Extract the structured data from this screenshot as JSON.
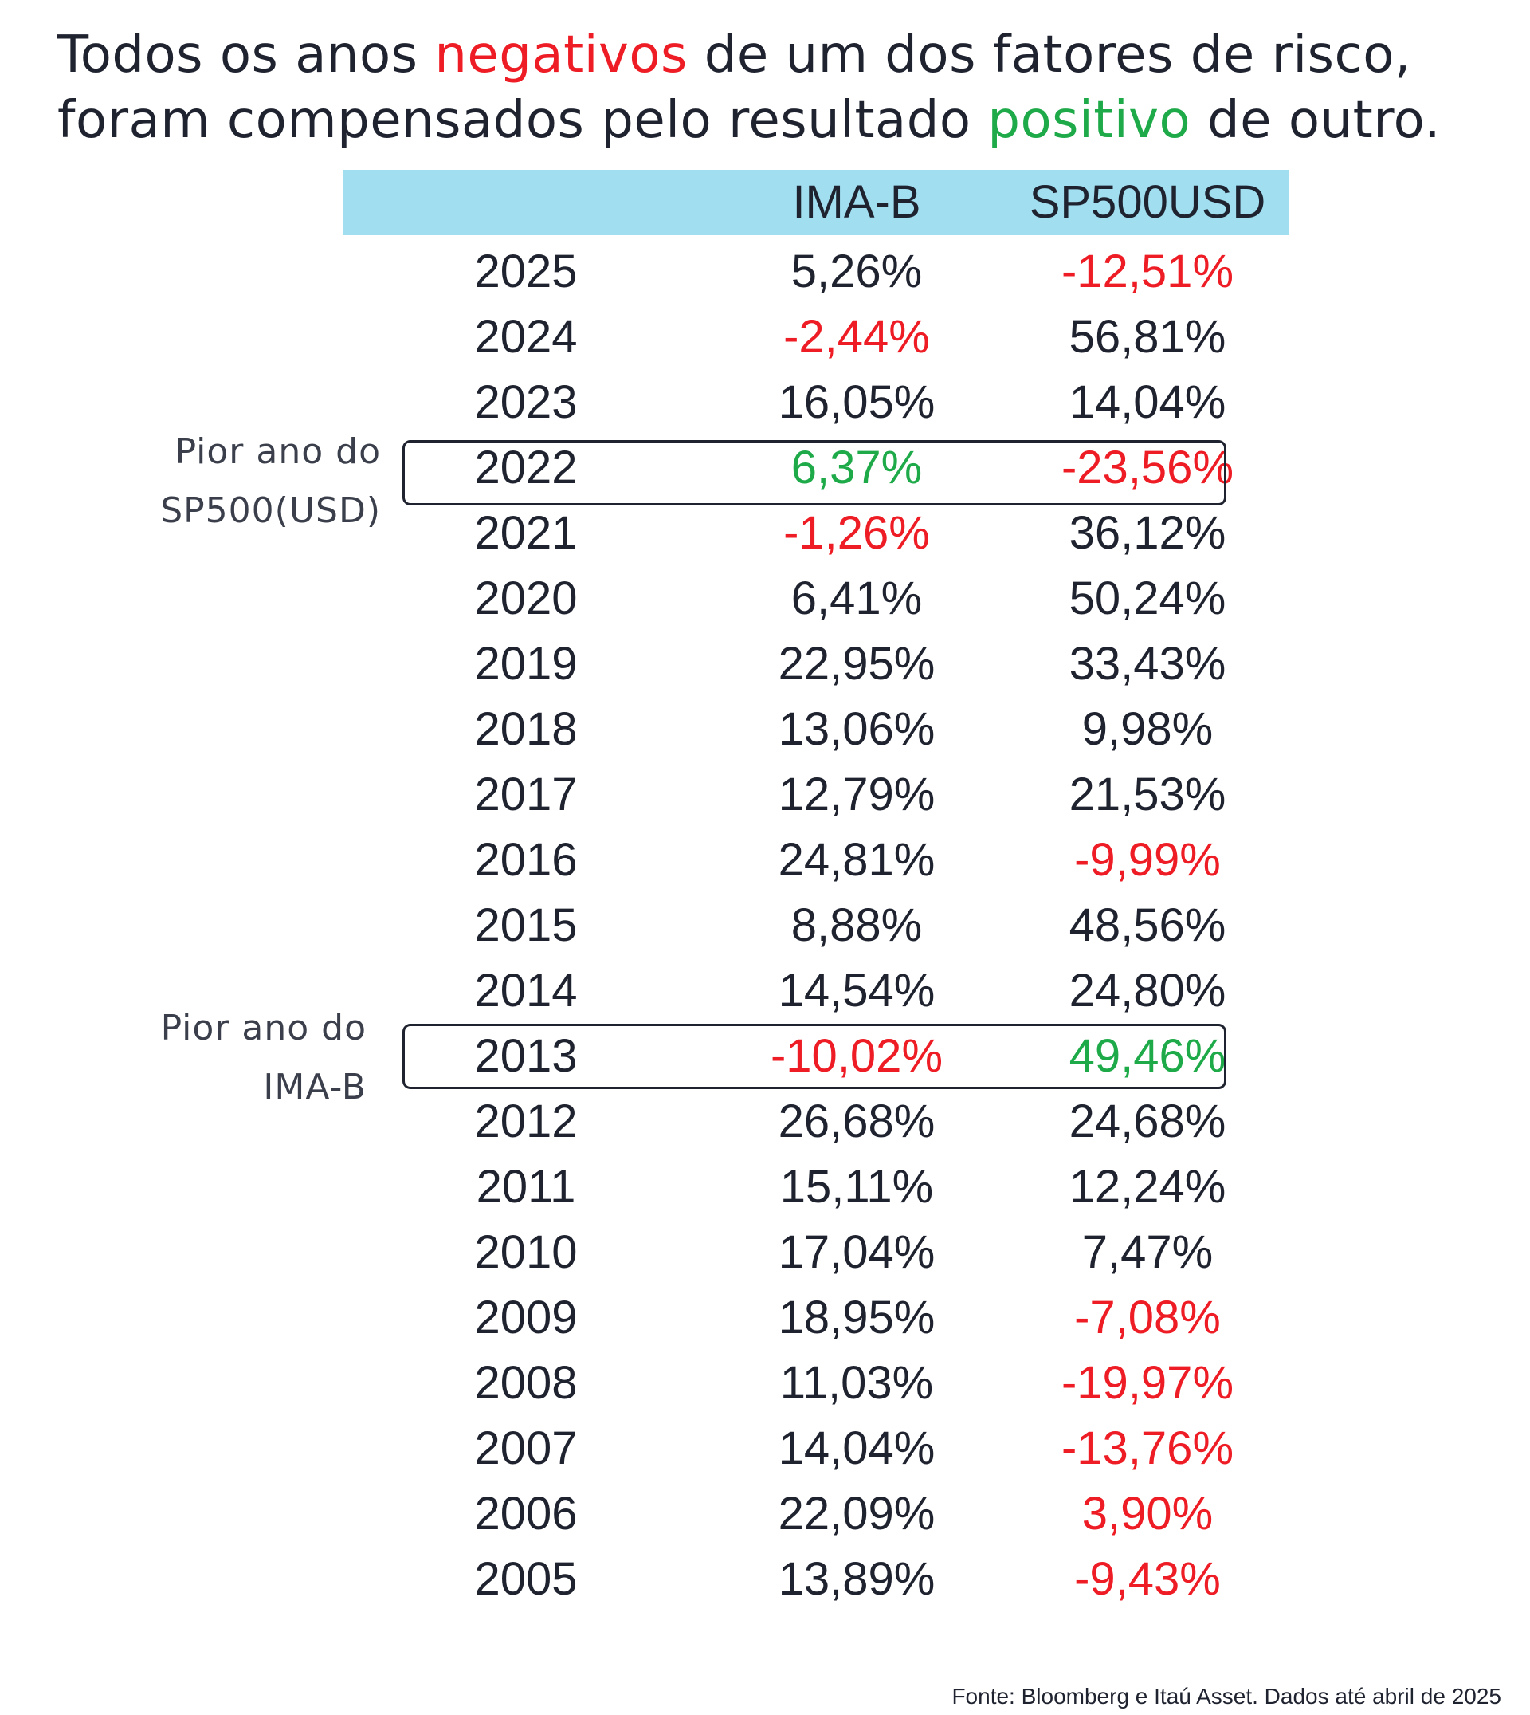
{
  "title": {
    "line1_part1": "Todos os anos ",
    "line1_neg": "negativos",
    "line1_part2": " de um dos fatores de risco,",
    "line2_part1": "foram compensados pelo resultado ",
    "line2_pos": "positivo",
    "line2_part2": " de outro."
  },
  "table": {
    "headers": [
      "",
      "IMA-B",
      "SP500USD"
    ],
    "rows": [
      {
        "year": "2025",
        "imab": "5,26%",
        "sp": "-12,51%",
        "imab_color": "default",
        "sp_color": "red"
      },
      {
        "year": "2024",
        "imab": "-2,44%",
        "sp": "56,81%",
        "imab_color": "red",
        "sp_color": "default"
      },
      {
        "year": "2023",
        "imab": "16,05%",
        "sp": "14,04%",
        "imab_color": "default",
        "sp_color": "default"
      },
      {
        "year": "2022",
        "imab": "6,37%",
        "sp": "-23,56%",
        "imab_color": "green",
        "sp_color": "red"
      },
      {
        "year": "2021",
        "imab": "-1,26%",
        "sp": "36,12%",
        "imab_color": "red",
        "sp_color": "default"
      },
      {
        "year": "2020",
        "imab": "6,41%",
        "sp": "50,24%",
        "imab_color": "default",
        "sp_color": "default"
      },
      {
        "year": "2019",
        "imab": "22,95%",
        "sp": "33,43%",
        "imab_color": "default",
        "sp_color": "default"
      },
      {
        "year": "2018",
        "imab": "13,06%",
        "sp": "9,98%",
        "imab_color": "default",
        "sp_color": "default"
      },
      {
        "year": "2017",
        "imab": "12,79%",
        "sp": "21,53%",
        "imab_color": "default",
        "sp_color": "default"
      },
      {
        "year": "2016",
        "imab": "24,81%",
        "sp": "-9,99%",
        "imab_color": "default",
        "sp_color": "red"
      },
      {
        "year": "2015",
        "imab": "8,88%",
        "sp": "48,56%",
        "imab_color": "default",
        "sp_color": "default"
      },
      {
        "year": "2014",
        "imab": "14,54%",
        "sp": "24,80%",
        "imab_color": "default",
        "sp_color": "default"
      },
      {
        "year": "2013",
        "imab": "-10,02%",
        "sp": "49,46%",
        "imab_color": "red",
        "sp_color": "green"
      },
      {
        "year": "2012",
        "imab": "26,68%",
        "sp": "24,68%",
        "imab_color": "default",
        "sp_color": "default"
      },
      {
        "year": "2011",
        "imab": "15,11%",
        "sp": "12,24%",
        "imab_color": "default",
        "sp_color": "default"
      },
      {
        "year": "2010",
        "imab": "17,04%",
        "sp": "7,47%",
        "imab_color": "default",
        "sp_color": "default"
      },
      {
        "year": "2009",
        "imab": "18,95%",
        "sp": "-7,08%",
        "imab_color": "default",
        "sp_color": "red"
      },
      {
        "year": "2008",
        "imab": "11,03%",
        "sp": "-19,97%",
        "imab_color": "default",
        "sp_color": "red"
      },
      {
        "year": "2007",
        "imab": "14,04%",
        "sp": "-13,76%",
        "imab_color": "default",
        "sp_color": "red"
      },
      {
        "year": "2006",
        "imab": "22,09%",
        "sp": "3,90%",
        "imab_color": "default",
        "sp_color": "red"
      },
      {
        "year": "2005",
        "imab": "13,89%",
        "sp": "-9,43%",
        "imab_color": "default",
        "sp_color": "red"
      }
    ]
  },
  "annotations": {
    "sp_worst_line1": "Pior ano do",
    "sp_worst_line2": "SP500(USD)",
    "imab_worst_line1": "Pior ano do",
    "imab_worst_line2": "IMA-B"
  },
  "footer": "Fonte: Bloomberg e Itaú Asset. Dados até abril de 2025",
  "colors": {
    "negative": "#ee1c24",
    "positive": "#1faa4a",
    "header_bg": "#a0def0",
    "text": "#1f2330"
  }
}
